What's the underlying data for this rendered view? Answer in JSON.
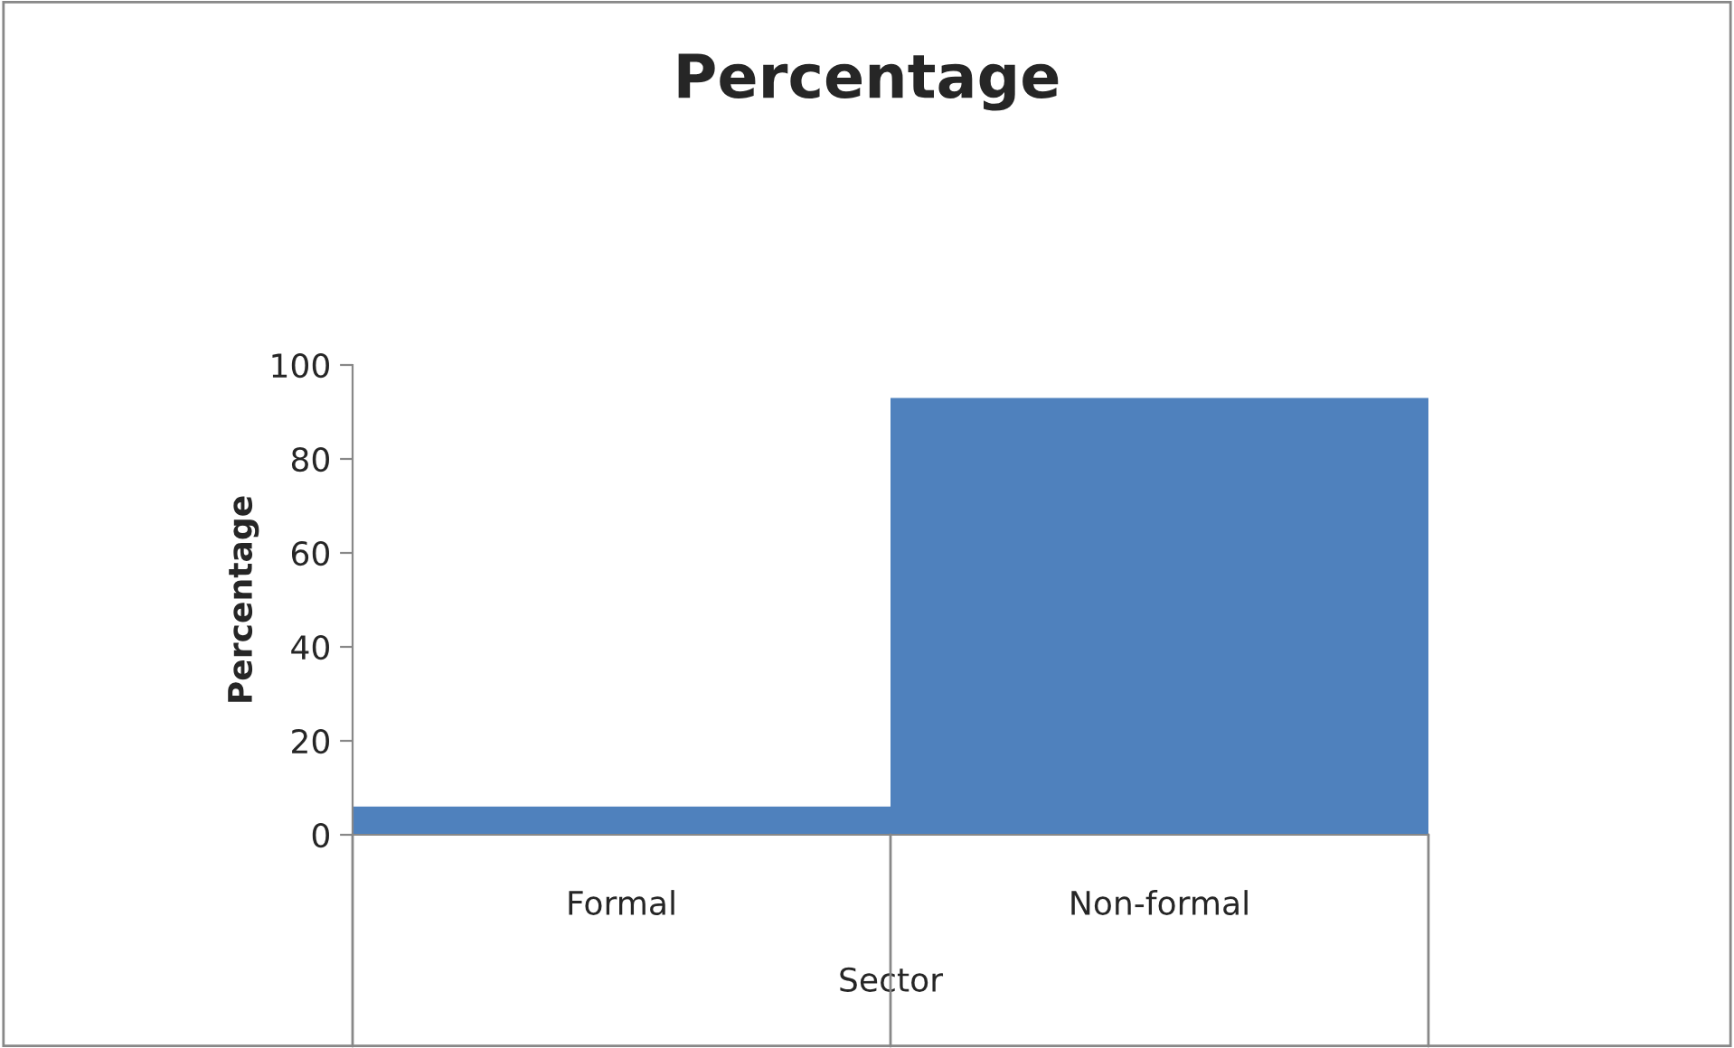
{
  "chart_data": {
    "type": "bar",
    "title": "Percentage",
    "xlabel": "Sector",
    "ylabel": "Percentage",
    "categories": [
      "Formal",
      "Non-formal"
    ],
    "series": [
      {
        "color": "#4f81bd",
        "values": [
          6,
          93
        ]
      }
    ],
    "ylim": [
      0,
      100
    ],
    "yticks": [
      0,
      20,
      40,
      60,
      80,
      100
    ],
    "grid": false,
    "legend": false
  }
}
